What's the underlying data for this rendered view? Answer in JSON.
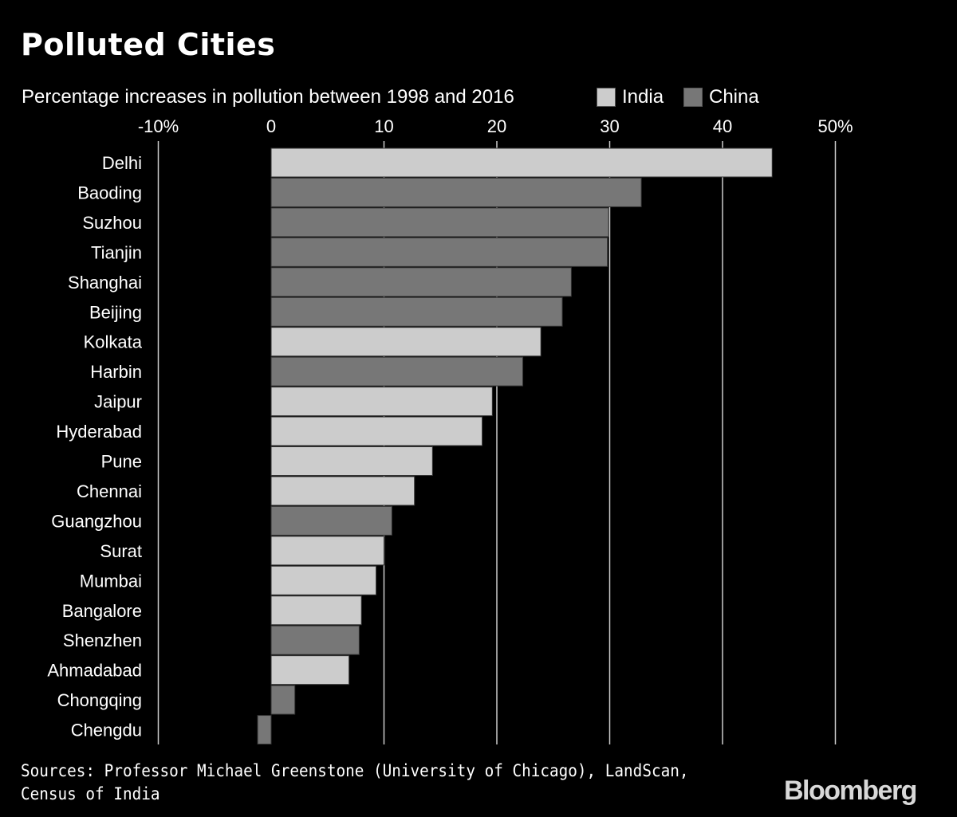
{
  "chart_data": {
    "type": "bar",
    "orientation": "horizontal",
    "title": "Polluted Cities",
    "subtitle": "Percentage increases in pollution between 1998 and 2016",
    "xlabel": "",
    "ylabel": "",
    "xlim": [
      -10,
      50
    ],
    "x_ticks": [
      -10,
      0,
      10,
      20,
      30,
      40,
      50
    ],
    "x_tick_labels": [
      "-10%",
      "0",
      "10",
      "20",
      "30",
      "40",
      "50%"
    ],
    "grid": true,
    "legend": {
      "placement": "top-right",
      "entries": [
        {
          "name": "India",
          "color": "#cccccc"
        },
        {
          "name": "China",
          "color": "#777777"
        }
      ]
    },
    "categories": [
      "Delhi",
      "Baoding",
      "Suzhou",
      "Tianjin",
      "Shanghai",
      "Beijing",
      "Kolkata",
      "Harbin",
      "Jaipur",
      "Hyderabad",
      "Pune",
      "Chennai",
      "Guangzhou",
      "Surat",
      "Mumbai",
      "Bangalore",
      "Shenzhen",
      "Ahmadabad",
      "Chongqing",
      "Chengdu"
    ],
    "values": [
      44.4,
      32.8,
      29.9,
      29.8,
      26.6,
      25.8,
      23.9,
      22.3,
      19.6,
      18.7,
      14.3,
      12.7,
      10.7,
      10.0,
      9.3,
      8.0,
      7.8,
      6.9,
      2.1,
      -1.2
    ],
    "country": [
      "India",
      "China",
      "China",
      "China",
      "China",
      "China",
      "India",
      "China",
      "India",
      "India",
      "India",
      "India",
      "China",
      "India",
      "India",
      "India",
      "China",
      "India",
      "China",
      "China"
    ]
  },
  "footer": {
    "sources_line1": "Sources: Professor Michael Greenstone (University of Chicago), LandScan,",
    "sources_line2": "Census of India",
    "logo": "Bloomberg"
  },
  "colors": {
    "background": "#000000",
    "india": "#cccccc",
    "china": "#777777",
    "grid": "#cccccc",
    "text": "#ffffff"
  }
}
